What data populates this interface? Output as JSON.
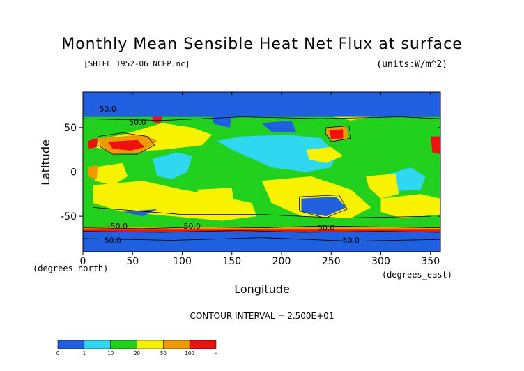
{
  "title": "Monthly Mean Sensible Heat Net Flux at surface",
  "file_label": "[SHTFL_1952-06_NCEP.nc]",
  "units_label": "(units:W/m^2)",
  "contour_interval": "CONTOUR INTERVAL = 2.500E+01",
  "contour_labels": [
    "50.0",
    "50.0",
    "-50.0",
    "50.0",
    "50.0",
    "50.0",
    "50.0"
  ],
  "chart_data": {
    "type": "heatmap",
    "title": "Monthly Mean Sensible Heat Net Flux at surface",
    "xlabel": "Longitude",
    "ylabel": "Latitude",
    "x_unit_label": "(degrees_east)",
    "y_unit_label": "(degrees_north)",
    "xlim": [
      0,
      360
    ],
    "ylim": [
      -90,
      90
    ],
    "x_ticks": [
      0,
      50,
      100,
      150,
      200,
      250,
      300,
      350
    ],
    "y_ticks": [
      -50,
      0,
      50
    ],
    "x_tick_labels": [
      "0",
      "50",
      "100",
      "150",
      "200",
      "250",
      "300",
      "350"
    ],
    "y_tick_labels": [
      "-50",
      "0",
      "50"
    ],
    "color_scale": {
      "boundaries": [
        "0",
        "1",
        "10",
        "20",
        "50",
        "100",
        "∞"
      ],
      "colors": [
        "#1f5fe0",
        "#2fd8f0",
        "#22d01e",
        "#f8f200",
        "#f09a00",
        "#f01010"
      ]
    }
  }
}
